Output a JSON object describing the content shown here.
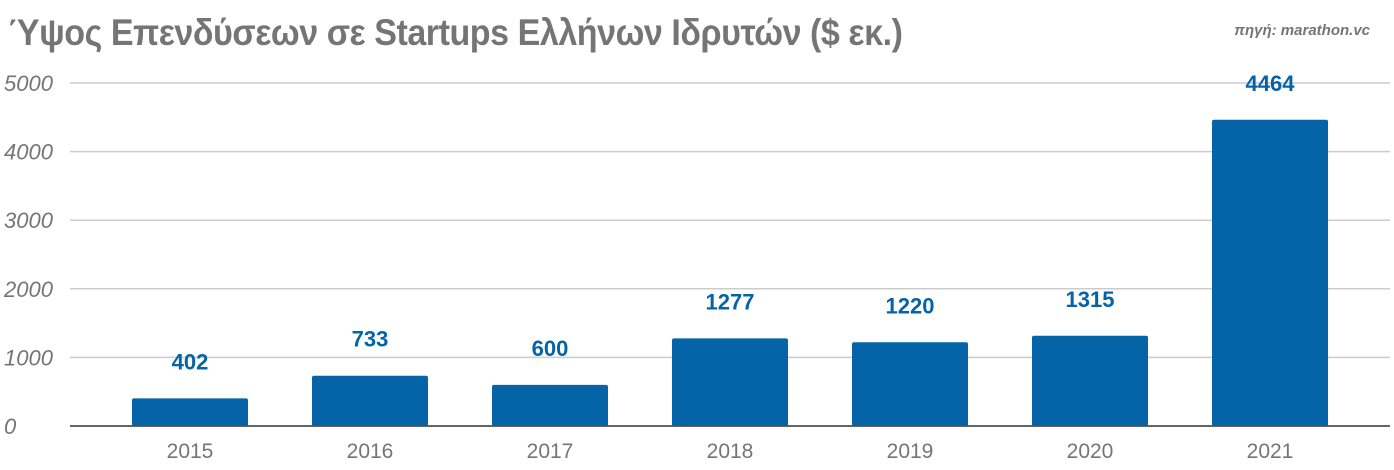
{
  "chart_data": {
    "type": "bar",
    "title": "Ύψος Επενδύσεων σε Startups Ελλήνων Ιδρυτών ($ εκ.)",
    "source": "πηγή: marathon.vc",
    "categories": [
      "2015",
      "2016",
      "2017",
      "2018",
      "2019",
      "2020",
      "2021"
    ],
    "values": [
      402,
      733,
      600,
      1277,
      1220,
      1315,
      4464
    ],
    "ylim": [
      0,
      5000
    ],
    "yticks": [
      0,
      1000,
      2000,
      3000,
      4000,
      5000
    ],
    "xlabel": "",
    "ylabel": "",
    "grid": true,
    "data_labels": true,
    "colors": {
      "bar": "#0563a8",
      "label": "#0563a8",
      "grid": "#cccccc",
      "axis_text": "#757575"
    }
  }
}
